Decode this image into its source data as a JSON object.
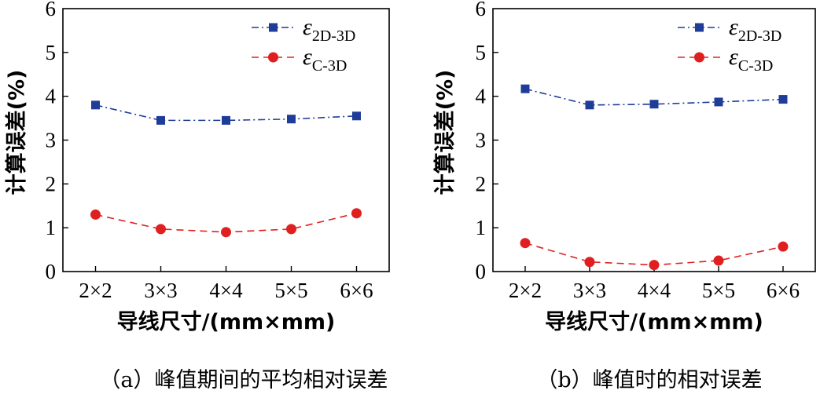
{
  "chart_data": [
    {
      "type": "line",
      "caption": "（a）峰值期间的平均相对误差",
      "xlabel": "导线尺寸/(mm×mm)",
      "ylabel": "计算误差(%)",
      "categories": [
        "2×2",
        "3×3",
        "4×4",
        "5×5",
        "6×6"
      ],
      "ylim": [
        0,
        6
      ],
      "yticks": [
        "0",
        "1",
        "2",
        "3",
        "4",
        "5",
        "6"
      ],
      "legend_position": "top-right",
      "series": [
        {
          "name": "ε",
          "name_sub": "2D-3D",
          "values": [
            3.8,
            3.45,
            3.45,
            3.48,
            3.55
          ],
          "color": "#1f3c99",
          "marker": "square",
          "dash": "dashdot"
        },
        {
          "name": "ε",
          "name_sub": "C-3D",
          "values": [
            1.3,
            0.97,
            0.9,
            0.97,
            1.33
          ],
          "color": "#e02020",
          "marker": "circle",
          "dash": "dashed"
        }
      ]
    },
    {
      "type": "line",
      "caption": "（b）峰值时的相对误差",
      "xlabel": "导线尺寸/(mm×mm)",
      "ylabel": "计算误差(%)",
      "categories": [
        "2×2",
        "3×3",
        "4×4",
        "5×5",
        "6×6"
      ],
      "ylim": [
        0,
        6
      ],
      "yticks": [
        "0",
        "1",
        "2",
        "3",
        "4",
        "5",
        "6"
      ],
      "legend_position": "top-right",
      "series": [
        {
          "name": "ε",
          "name_sub": "2D-3D",
          "values": [
            4.17,
            3.8,
            3.82,
            3.87,
            3.93
          ],
          "color": "#1f3c99",
          "marker": "square",
          "dash": "dashdot"
        },
        {
          "name": "ε",
          "name_sub": "C-3D",
          "values": [
            0.65,
            0.22,
            0.15,
            0.25,
            0.57
          ],
          "color": "#e02020",
          "marker": "circle",
          "dash": "dashed"
        }
      ]
    }
  ]
}
